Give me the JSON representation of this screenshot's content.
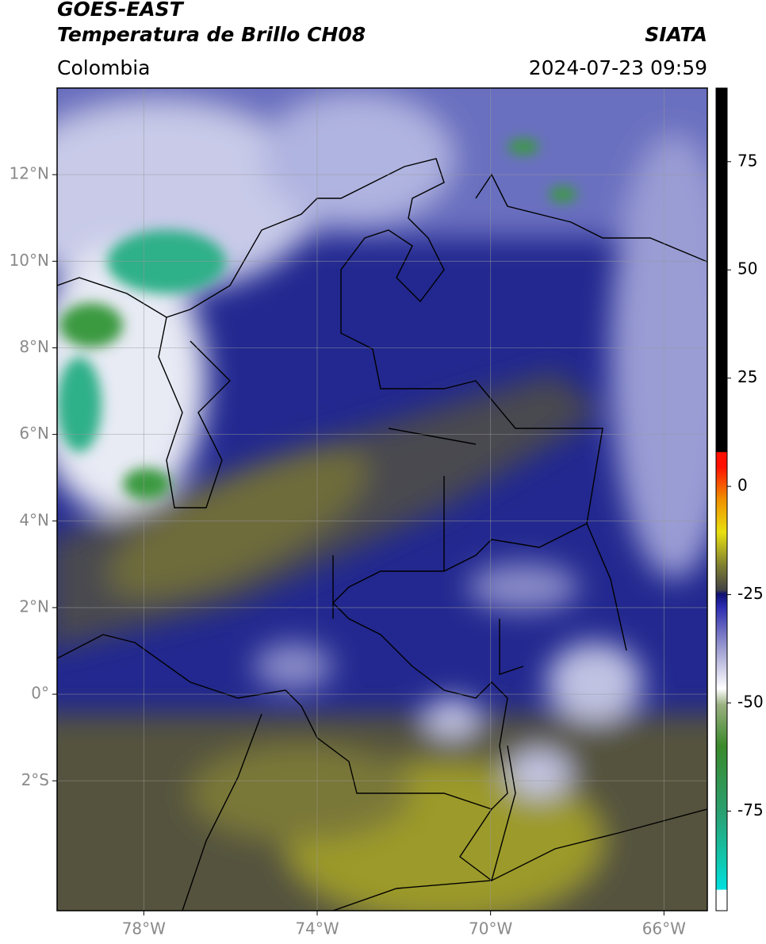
{
  "header": {
    "title": "GOES-EAST",
    "subtitle": "Temperatura de Brillo CH08",
    "brand": "SIATA",
    "region": "Colombia",
    "datetime": "2024-07-23 09:59"
  },
  "map": {
    "xlim": [
      -80,
      -65
    ],
    "ylim": [
      -5,
      14
    ],
    "xticks": [
      {
        "value": -78,
        "label": "78°W"
      },
      {
        "value": -74,
        "label": "74°W"
      },
      {
        "value": -70,
        "label": "70°W"
      },
      {
        "value": -66,
        "label": "66°W"
      }
    ],
    "yticks": [
      {
        "value": 12,
        "label": "12°N"
      },
      {
        "value": 10,
        "label": "10°N"
      },
      {
        "value": 8,
        "label": "8°N"
      },
      {
        "value": 6,
        "label": "6°N"
      },
      {
        "value": 4,
        "label": "4°N"
      },
      {
        "value": 2,
        "label": "2°N"
      },
      {
        "value": 0,
        "label": "0°"
      },
      {
        "value": -2,
        "label": "2°S"
      }
    ],
    "grid": true
  },
  "colorbar": {
    "lim": [
      -98,
      92
    ],
    "ticks": [
      75,
      50,
      25,
      0,
      -25,
      -50,
      -75
    ]
  }
}
